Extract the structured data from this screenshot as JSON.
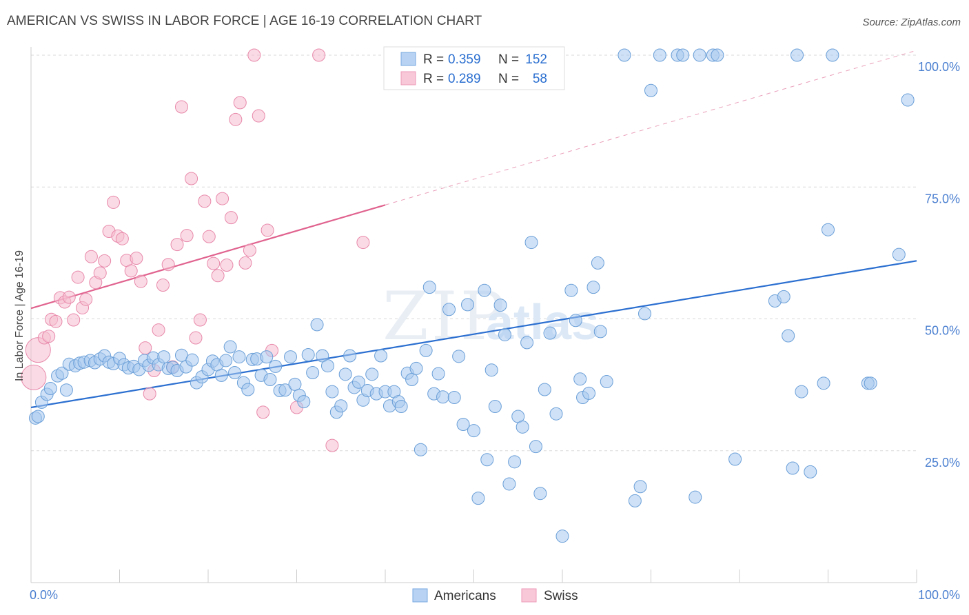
{
  "title": "AMERICAN VS SWISS IN LABOR FORCE | AGE 16-19 CORRELATION CHART",
  "source": "Source: ZipAtlas.com",
  "watermark": {
    "zip": "ZIP",
    "atlas": "atlas"
  },
  "colors": {
    "americans_fill": "#a8c8ee",
    "americans_stroke": "#6a9fd8",
    "americans_line": "#2b6fd0",
    "swiss_fill": "#f6bdd0",
    "swiss_stroke": "#e888aa",
    "swiss_line": "#e0628e",
    "axis_text": "#4a7fd0",
    "grid": "#d8d8d8"
  },
  "legend_top": {
    "rows": [
      {
        "r_label": "R =",
        "r_value": "0.359",
        "n_label": "N =",
        "n_value": "152"
      },
      {
        "r_label": "R =",
        "r_value": "0.289",
        "n_label": "N =",
        "n_value": "58"
      }
    ]
  },
  "legend_bottom": {
    "items": [
      "Americans",
      "Swiss"
    ]
  },
  "chart_data": {
    "type": "scatter",
    "title": "AMERICAN VS SWISS IN LABOR FORCE | AGE 16-19 CORRELATION CHART",
    "xlabel": "",
    "ylabel": "In Labor Force | Age 16-19",
    "xlim": [
      0,
      100
    ],
    "ylim": [
      0,
      103
    ],
    "x_tick_labels": [
      "0.0%",
      "100.0%"
    ],
    "y_tick_labels": [
      "25.0%",
      "50.0%",
      "75.0%",
      "100.0%"
    ],
    "y_ticks": [
      25,
      50,
      75,
      100
    ],
    "grid": true,
    "legend_position": "bottom",
    "series": [
      {
        "name": "Americans",
        "r": 0.359,
        "n": 152,
        "trend": {
          "x0": 0,
          "y0": 33.2,
          "x1": 100,
          "y1": 61.0
        },
        "points": [
          [
            0.5,
            31.2
          ],
          [
            0.8,
            31.5
          ],
          [
            1.2,
            34.2
          ],
          [
            1.8,
            35.7
          ],
          [
            2.2,
            36.8
          ],
          [
            3.0,
            39.2
          ],
          [
            3.5,
            39.7
          ],
          [
            4.0,
            36.5
          ],
          [
            4.3,
            41.4
          ],
          [
            5.0,
            41.1
          ],
          [
            5.5,
            41.6
          ],
          [
            6.0,
            41.8
          ],
          [
            6.7,
            42.1
          ],
          [
            7.2,
            41.7
          ],
          [
            7.8,
            42.4
          ],
          [
            8.3,
            43.0
          ],
          [
            8.8,
            41.8
          ],
          [
            9.3,
            41.5
          ],
          [
            10.0,
            42.5
          ],
          [
            10.5,
            41.3
          ],
          [
            11.0,
            40.7
          ],
          [
            11.6,
            41.0
          ],
          [
            12.2,
            40.4
          ],
          [
            12.8,
            42.1
          ],
          [
            13.3,
            41.2
          ],
          [
            13.8,
            42.6
          ],
          [
            14.4,
            41.3
          ],
          [
            15.0,
            42.8
          ],
          [
            15.5,
            40.6
          ],
          [
            16.0,
            40.8
          ],
          [
            16.5,
            40.2
          ],
          [
            17.0,
            43.1
          ],
          [
            17.5,
            40.9
          ],
          [
            18.2,
            42.2
          ],
          [
            18.7,
            37.9
          ],
          [
            19.3,
            39.0
          ],
          [
            20.0,
            40.4
          ],
          [
            20.5,
            42.0
          ],
          [
            21.0,
            41.3
          ],
          [
            21.5,
            39.3
          ],
          [
            22.0,
            42.1
          ],
          [
            22.5,
            44.7
          ],
          [
            23.0,
            39.8
          ],
          [
            23.5,
            42.8
          ],
          [
            24.0,
            37.9
          ],
          [
            24.5,
            36.6
          ],
          [
            25.0,
            42.3
          ],
          [
            25.5,
            42.4
          ],
          [
            26.0,
            39.3
          ],
          [
            26.6,
            42.8
          ],
          [
            27.0,
            38.5
          ],
          [
            27.6,
            41.0
          ],
          [
            28.1,
            36.4
          ],
          [
            28.7,
            36.5
          ],
          [
            29.3,
            42.8
          ],
          [
            29.8,
            37.6
          ],
          [
            30.3,
            35.5
          ],
          [
            30.8,
            34.3
          ],
          [
            31.3,
            43.2
          ],
          [
            31.8,
            39.8
          ],
          [
            32.3,
            48.9
          ],
          [
            32.9,
            43.0
          ],
          [
            33.5,
            41.1
          ],
          [
            34.0,
            36.2
          ],
          [
            34.5,
            32.3
          ],
          [
            35.0,
            33.5
          ],
          [
            35.5,
            39.5
          ],
          [
            36.0,
            43.0
          ],
          [
            36.5,
            37.0
          ],
          [
            37.0,
            38.0
          ],
          [
            37.5,
            34.6
          ],
          [
            38.0,
            36.4
          ],
          [
            38.5,
            39.5
          ],
          [
            39.0,
            35.8
          ],
          [
            39.5,
            43.0
          ],
          [
            40.0,
            36.2
          ],
          [
            40.5,
            33.5
          ],
          [
            41.0,
            36.2
          ],
          [
            41.5,
            34.3
          ],
          [
            41.8,
            33.4
          ],
          [
            42.5,
            39.7
          ],
          [
            43.0,
            38.5
          ],
          [
            43.5,
            40.6
          ],
          [
            44.0,
            25.2
          ],
          [
            44.6,
            44.0
          ],
          [
            45.0,
            56.0
          ],
          [
            45.5,
            35.8
          ],
          [
            46.0,
            39.6
          ],
          [
            46.5,
            35.2
          ],
          [
            47.2,
            51.8
          ],
          [
            47.8,
            35.1
          ],
          [
            48.3,
            42.9
          ],
          [
            48.8,
            30.0
          ],
          [
            49.3,
            52.7
          ],
          [
            50.0,
            28.8
          ],
          [
            50.5,
            16.0
          ],
          [
            51.2,
            55.4
          ],
          [
            51.5,
            23.3
          ],
          [
            52.0,
            40.3
          ],
          [
            52.4,
            33.4
          ],
          [
            53.0,
            52.6
          ],
          [
            53.5,
            47.0
          ],
          [
            54.0,
            18.7
          ],
          [
            54.6,
            22.9
          ],
          [
            55.0,
            31.5
          ],
          [
            55.5,
            29.5
          ],
          [
            56.0,
            45.5
          ],
          [
            56.5,
            64.5
          ],
          [
            57.0,
            25.8
          ],
          [
            57.5,
            16.9
          ],
          [
            58.0,
            36.6
          ],
          [
            58.6,
            47.3
          ],
          [
            59.3,
            32.0
          ],
          [
            60.0,
            8.8
          ],
          [
            61.0,
            55.4
          ],
          [
            61.5,
            49.7
          ],
          [
            62.0,
            38.6
          ],
          [
            62.3,
            35.1
          ],
          [
            63.0,
            35.9
          ],
          [
            63.5,
            56.0
          ],
          [
            64.0,
            60.6
          ],
          [
            64.3,
            47.6
          ],
          [
            65.0,
            38.1
          ],
          [
            67.0,
            100.0
          ],
          [
            68.2,
            15.5
          ],
          [
            68.8,
            18.2
          ],
          [
            69.3,
            51.0
          ],
          [
            70.0,
            93.3
          ],
          [
            71.0,
            100.0
          ],
          [
            73.0,
            100.0
          ],
          [
            73.6,
            100.0
          ],
          [
            75.0,
            16.2
          ],
          [
            75.5,
            100.0
          ],
          [
            77.0,
            100.0
          ],
          [
            77.5,
            100.0
          ],
          [
            79.5,
            23.4
          ],
          [
            84.0,
            53.4
          ],
          [
            85.0,
            54.2
          ],
          [
            85.5,
            46.8
          ],
          [
            86.0,
            21.7
          ],
          [
            87.0,
            36.2
          ],
          [
            88.0,
            21.0
          ],
          [
            89.5,
            37.8
          ],
          [
            90.0,
            66.9
          ],
          [
            94.5,
            37.8
          ],
          [
            94.8,
            37.8
          ],
          [
            98.0,
            62.2
          ],
          [
            99.0,
            91.5
          ],
          [
            86.5,
            100.0
          ],
          [
            90.5,
            100.0
          ]
        ]
      },
      {
        "name": "Swiss",
        "r": 0.289,
        "n": 58,
        "trend": {
          "x0": 0,
          "y0": 52.0,
          "x1": 40,
          "y1": 71.6,
          "dash_x1": 100,
          "dash_y1": 100.9
        },
        "points": [
          [
            0.3,
            38.9
          ],
          [
            0.8,
            44.1
          ],
          [
            1.5,
            46.4
          ],
          [
            2.0,
            46.7
          ],
          [
            2.3,
            49.9
          ],
          [
            2.8,
            49.5
          ],
          [
            3.3,
            54.0
          ],
          [
            3.8,
            53.2
          ],
          [
            4.3,
            54.1
          ],
          [
            4.8,
            49.8
          ],
          [
            5.3,
            57.9
          ],
          [
            5.8,
            52.1
          ],
          [
            6.2,
            53.7
          ],
          [
            6.8,
            61.8
          ],
          [
            7.3,
            56.9
          ],
          [
            7.8,
            58.7
          ],
          [
            8.3,
            61.0
          ],
          [
            8.8,
            66.6
          ],
          [
            9.3,
            72.1
          ],
          [
            9.8,
            65.7
          ],
          [
            10.3,
            65.2
          ],
          [
            10.8,
            61.1
          ],
          [
            11.3,
            59.1
          ],
          [
            11.9,
            61.5
          ],
          [
            12.4,
            57.1
          ],
          [
            12.9,
            44.5
          ],
          [
            13.4,
            35.8
          ],
          [
            13.9,
            40.2
          ],
          [
            14.4,
            47.9
          ],
          [
            14.9,
            56.4
          ],
          [
            15.5,
            60.3
          ],
          [
            16.0,
            40.9
          ],
          [
            16.5,
            64.1
          ],
          [
            17.0,
            90.2
          ],
          [
            17.6,
            65.8
          ],
          [
            18.1,
            76.6
          ],
          [
            18.6,
            46.4
          ],
          [
            19.1,
            49.8
          ],
          [
            19.6,
            72.3
          ],
          [
            20.1,
            65.6
          ],
          [
            20.6,
            60.5
          ],
          [
            21.1,
            58.2
          ],
          [
            21.6,
            72.8
          ],
          [
            22.1,
            60.2
          ],
          [
            22.6,
            69.2
          ],
          [
            23.1,
            87.8
          ],
          [
            23.6,
            91.0
          ],
          [
            24.2,
            60.6
          ],
          [
            24.7,
            63.0
          ],
          [
            25.2,
            100.0
          ],
          [
            25.7,
            88.5
          ],
          [
            26.2,
            32.3
          ],
          [
            26.7,
            66.8
          ],
          [
            27.2,
            44.0
          ],
          [
            30.0,
            33.2
          ],
          [
            32.5,
            100.0
          ],
          [
            34.0,
            26.0
          ],
          [
            37.5,
            64.5
          ]
        ]
      }
    ]
  }
}
